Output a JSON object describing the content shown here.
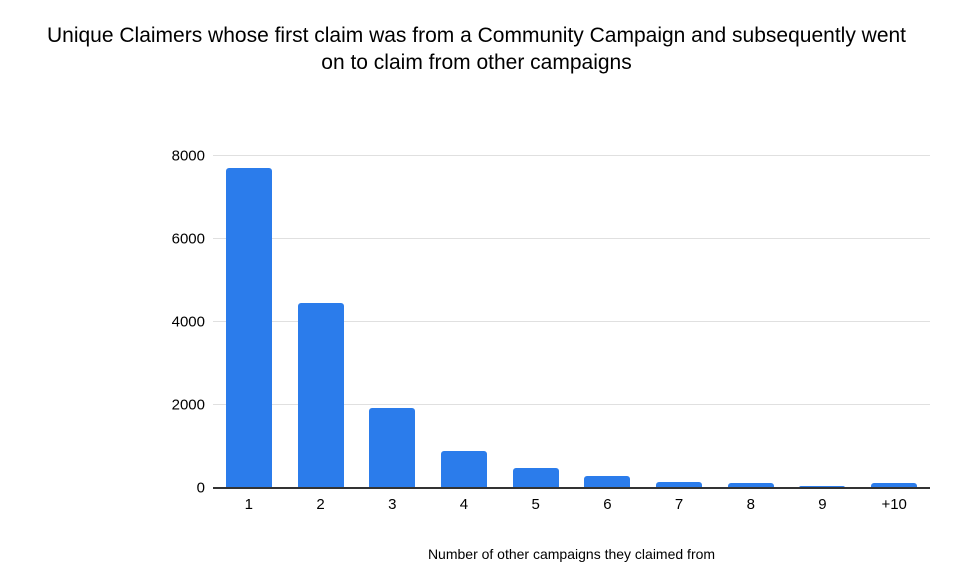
{
  "page": {
    "background_color": "#ffffff",
    "text_color": "#000000"
  },
  "chart_data": {
    "type": "bar",
    "title": "Unique Claimers whose first claim was from a Community Campaign and subsequently went on to claim from other campaigns",
    "categories": [
      "1",
      "2",
      "3",
      "4",
      "5",
      "6",
      "7",
      "8",
      "9",
      "+10"
    ],
    "values": [
      7720,
      4470,
      1940,
      890,
      490,
      280,
      150,
      110,
      50,
      130
    ],
    "xlabel": "Number of other campaigns they claimed from",
    "ylabel": "",
    "ylim": [
      0,
      8000
    ],
    "yticks": [
      0,
      2000,
      4000,
      6000,
      8000
    ],
    "grid": true,
    "legend_position": "none",
    "bar_color": "#2b7ceb",
    "gridline_color": "#e0e0e0",
    "axis_line_color": "#333333",
    "tick_label_color": "#000000"
  }
}
